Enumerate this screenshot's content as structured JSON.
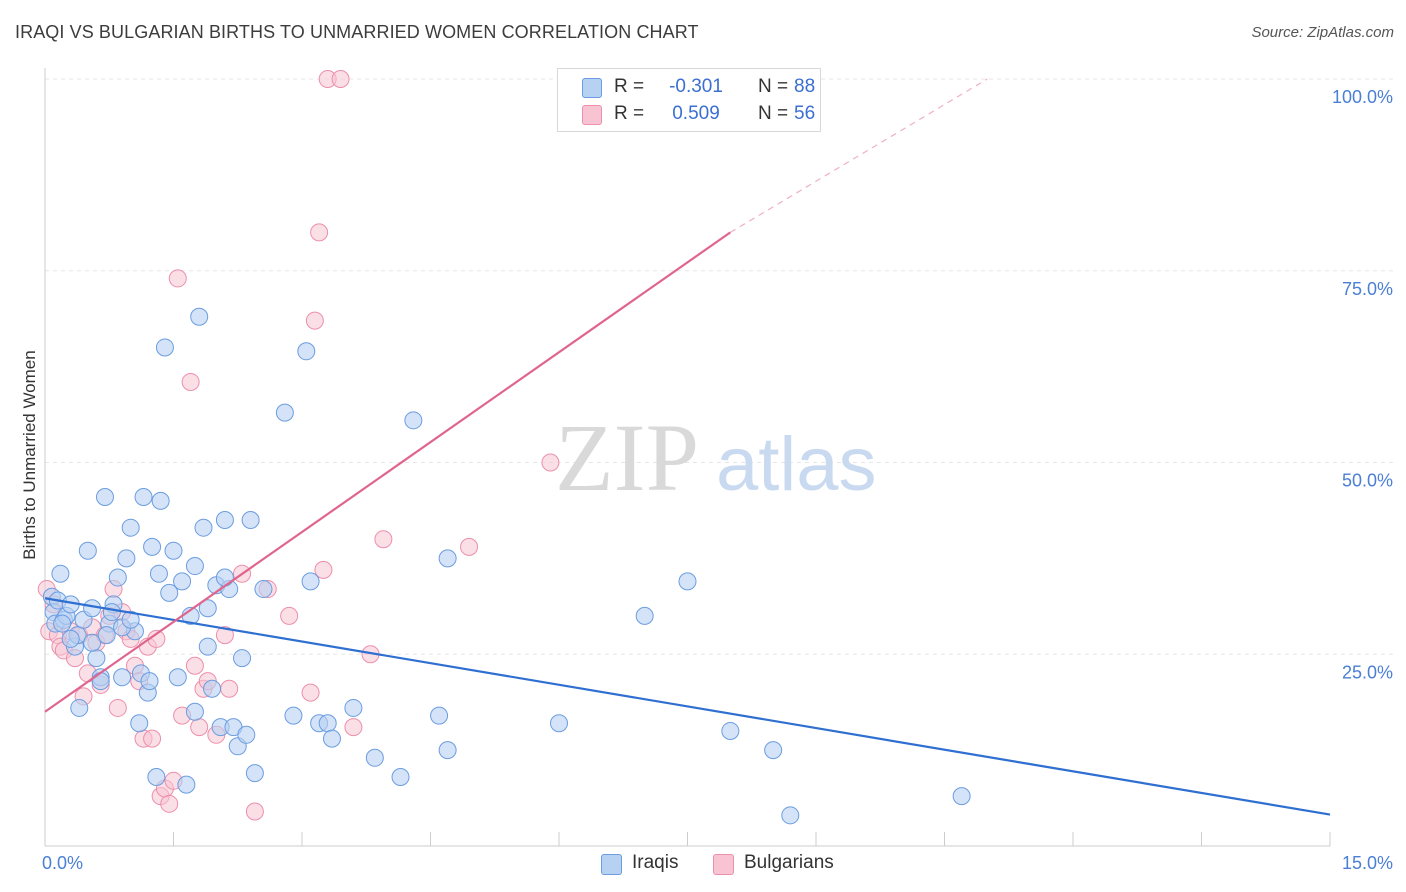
{
  "header": {
    "title": "IRAQI VS BULGARIAN BIRTHS TO UNMARRIED WOMEN CORRELATION CHART",
    "source": "Source: ZipAtlas.com"
  },
  "watermark": {
    "zip": "ZIP",
    "atlas": "atlas"
  },
  "colors": {
    "iraqi_fill": "#b7d1f2",
    "iraqi_stroke": "#6b9de0",
    "iraqi_line": "#2e6fd1",
    "bulgarian_fill": "#f8c4d4",
    "bulgarian_stroke": "#ec8fab",
    "bulgarian_line": "#e0658e",
    "grid": "#e6e6e6",
    "tick_text": "#4a7fd4"
  },
  "legend": {
    "rows": [
      {
        "r_label": "R =",
        "r_value": "-0.301",
        "n_label": "N =",
        "n_value": "88"
      },
      {
        "r_label": "R =",
        "r_value": "0.509",
        "n_label": "N =",
        "n_value": "56"
      }
    ]
  },
  "bottom_legend": {
    "iraqis": "Iraqis",
    "bulgarians": "Bulgarians"
  },
  "chart_data": {
    "type": "scatter",
    "title": "IRAQI VS BULGARIAN BIRTHS TO UNMARRIED WOMEN CORRELATION CHART",
    "xlabel": "",
    "ylabel": "Births to Unmarried Women",
    "xlim": [
      0,
      15
    ],
    "ylim": [
      0,
      100
    ],
    "x_tick_labels": [
      "0.0%",
      "15.0%"
    ],
    "y_ticks": [
      25,
      50,
      75,
      100
    ],
    "y_tick_labels": [
      "25.0%",
      "50.0%",
      "75.0%",
      "100.0%"
    ],
    "series": [
      {
        "name": "Iraqis",
        "R": -0.301,
        "N": 88,
        "trend": {
          "x": [
            0,
            15
          ],
          "y": [
            32.3,
            4.1
          ]
        },
        "points": [
          [
            0.08,
            32.5
          ],
          [
            0.1,
            30.5
          ],
          [
            0.12,
            29.0
          ],
          [
            0.15,
            32.0
          ],
          [
            0.18,
            35.5
          ],
          [
            0.22,
            29.5
          ],
          [
            0.25,
            30.0
          ],
          [
            0.3,
            31.5
          ],
          [
            0.35,
            26.0
          ],
          [
            0.38,
            27.5
          ],
          [
            0.4,
            18.0
          ],
          [
            0.45,
            29.5
          ],
          [
            0.5,
            38.5
          ],
          [
            0.55,
            31.0
          ],
          [
            0.6,
            24.5
          ],
          [
            0.65,
            22.0
          ],
          [
            0.7,
            45.5
          ],
          [
            0.75,
            29.0
          ],
          [
            0.8,
            31.5
          ],
          [
            0.85,
            35.0
          ],
          [
            0.9,
            22.0
          ],
          [
            0.95,
            37.5
          ],
          [
            1.0,
            41.5
          ],
          [
            1.05,
            28.0
          ],
          [
            1.1,
            16.0
          ],
          [
            1.15,
            45.5
          ],
          [
            1.2,
            20.0
          ],
          [
            1.25,
            39.0
          ],
          [
            1.3,
            9.0
          ],
          [
            1.35,
            45.0
          ],
          [
            1.4,
            65.0
          ],
          [
            1.45,
            33.0
          ],
          [
            1.5,
            38.5
          ],
          [
            1.6,
            34.5
          ],
          [
            1.65,
            8.0
          ],
          [
            1.7,
            30.0
          ],
          [
            1.75,
            17.5
          ],
          [
            1.8,
            69.0
          ],
          [
            1.85,
            41.5
          ],
          [
            1.9,
            26.0
          ],
          [
            1.95,
            20.5
          ],
          [
            2.0,
            34.0
          ],
          [
            2.05,
            15.5
          ],
          [
            2.1,
            42.5
          ],
          [
            2.15,
            33.5
          ],
          [
            2.2,
            15.5
          ],
          [
            2.25,
            13.0
          ],
          [
            2.3,
            24.5
          ],
          [
            2.35,
            14.5
          ],
          [
            2.4,
            42.5
          ],
          [
            2.45,
            9.5
          ],
          [
            2.8,
            56.5
          ],
          [
            3.05,
            64.5
          ],
          [
            3.2,
            16.0
          ],
          [
            3.3,
            16.0
          ],
          [
            3.35,
            14.0
          ],
          [
            3.6,
            18.0
          ],
          [
            3.85,
            11.5
          ],
          [
            4.15,
            9.0
          ],
          [
            4.3,
            55.5
          ],
          [
            4.6,
            17.0
          ],
          [
            4.7,
            12.5
          ],
          [
            4.7,
            37.5
          ],
          [
            6.0,
            16.0
          ],
          [
            7.0,
            30.0
          ],
          [
            7.5,
            34.5
          ],
          [
            8.0,
            15.0
          ],
          [
            8.5,
            12.5
          ],
          [
            8.7,
            4.0
          ],
          [
            10.7,
            6.5
          ],
          [
            0.2,
            29.0
          ],
          [
            0.3,
            27.0
          ],
          [
            0.55,
            26.5
          ],
          [
            0.65,
            21.5
          ],
          [
            0.72,
            27.5
          ],
          [
            0.78,
            30.5
          ],
          [
            0.9,
            28.5
          ],
          [
            1.0,
            29.5
          ],
          [
            1.12,
            22.5
          ],
          [
            1.22,
            21.5
          ],
          [
            1.33,
            35.5
          ],
          [
            1.55,
            22.0
          ],
          [
            1.75,
            36.5
          ],
          [
            1.9,
            31.0
          ],
          [
            2.1,
            35.0
          ],
          [
            2.55,
            33.5
          ],
          [
            2.9,
            17.0
          ],
          [
            3.1,
            34.5
          ]
        ]
      },
      {
        "name": "Bulgarians",
        "R": 0.509,
        "N": 56,
        "trend": {
          "x": [
            0,
            8.0
          ],
          "y": [
            17.5,
            80.0
          ]
        },
        "trend_dashed": {
          "x": [
            8.0,
            11.0
          ],
          "y": [
            80.0,
            100.0
          ]
        },
        "points": [
          [
            0.02,
            33.5
          ],
          [
            0.05,
            28.0
          ],
          [
            0.1,
            31.5
          ],
          [
            0.15,
            27.5
          ],
          [
            0.18,
            26.0
          ],
          [
            0.22,
            25.5
          ],
          [
            0.3,
            28.0
          ],
          [
            0.35,
            24.5
          ],
          [
            0.4,
            27.5
          ],
          [
            0.45,
            19.5
          ],
          [
            0.5,
            22.5
          ],
          [
            0.55,
            28.5
          ],
          [
            0.6,
            26.5
          ],
          [
            0.65,
            21.0
          ],
          [
            0.7,
            27.5
          ],
          [
            0.75,
            30.0
          ],
          [
            0.8,
            33.5
          ],
          [
            0.85,
            18.0
          ],
          [
            0.9,
            30.5
          ],
          [
            0.95,
            28.0
          ],
          [
            1.05,
            23.5
          ],
          [
            1.1,
            21.5
          ],
          [
            1.15,
            14.0
          ],
          [
            1.2,
            26.0
          ],
          [
            1.25,
            14.0
          ],
          [
            1.3,
            27.0
          ],
          [
            1.35,
            6.5
          ],
          [
            1.4,
            7.5
          ],
          [
            1.45,
            5.5
          ],
          [
            1.5,
            8.5
          ],
          [
            1.55,
            74.0
          ],
          [
            1.6,
            17.0
          ],
          [
            1.7,
            60.5
          ],
          [
            1.75,
            23.5
          ],
          [
            1.8,
            15.5
          ],
          [
            1.85,
            20.5
          ],
          [
            1.9,
            21.5
          ],
          [
            2.0,
            14.5
          ],
          [
            2.1,
            27.5
          ],
          [
            2.15,
            20.5
          ],
          [
            2.3,
            35.5
          ],
          [
            2.45,
            4.5
          ],
          [
            2.6,
            33.5
          ],
          [
            2.85,
            30.0
          ],
          [
            3.1,
            20.0
          ],
          [
            3.15,
            68.5
          ],
          [
            3.2,
            80.0
          ],
          [
            3.25,
            36.0
          ],
          [
            3.3,
            100.0
          ],
          [
            3.45,
            100.0
          ],
          [
            3.6,
            15.5
          ],
          [
            3.8,
            25.0
          ],
          [
            3.95,
            40.0
          ],
          [
            4.95,
            39.0
          ],
          [
            5.9,
            50.0
          ],
          [
            1.0,
            27.0
          ]
        ]
      }
    ]
  }
}
